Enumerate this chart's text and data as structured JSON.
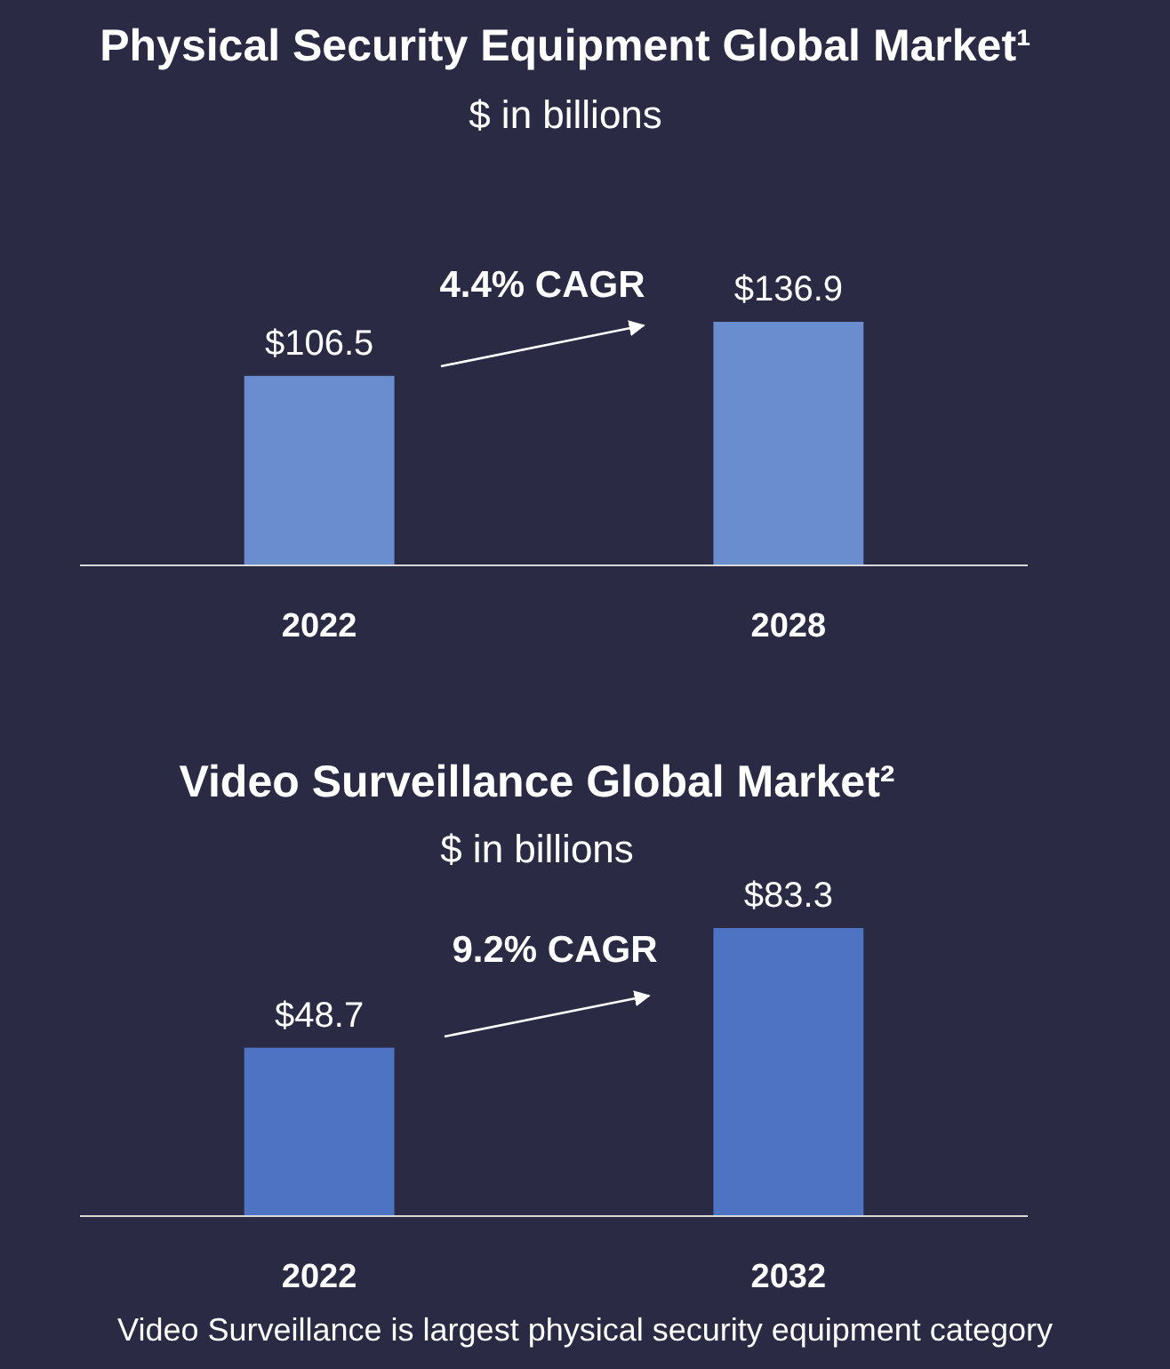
{
  "chart_data": [
    {
      "type": "bar",
      "title": "Physical Security Equipment Global Market¹",
      "subtitle": "$ in billions",
      "categories": [
        "2022",
        "2028"
      ],
      "values": [
        106.5,
        136.9
      ],
      "value_labels": [
        "$106.5",
        "$136.9"
      ],
      "color": "#6a8dcf",
      "annotations": [
        "4.4% CAGR"
      ]
    },
    {
      "type": "bar",
      "title": "Video Surveillance Global Market²",
      "subtitle": "$ in billions",
      "categories": [
        "2022",
        "2032"
      ],
      "values": [
        48.7,
        83.3
      ],
      "value_labels": [
        "$48.7",
        "$83.3"
      ],
      "color": "#4f73c3",
      "annotations": [
        "9.2% CAGR",
        "Video Surveillance is largest physical security equipment category"
      ]
    }
  ]
}
